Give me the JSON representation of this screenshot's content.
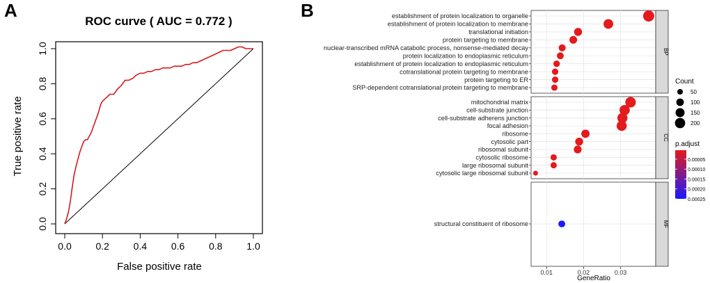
{
  "panels": {
    "a": "A",
    "b": "B"
  },
  "chart_data": [
    {
      "type": "line",
      "title": "ROC curve ( AUC =  0.772 )",
      "xlabel": "False positive rate",
      "ylabel": "True positive rate",
      "xlim": [
        0,
        1
      ],
      "ylim": [
        0,
        1
      ],
      "x_ticks": [
        "0.0",
        "0.2",
        "0.4",
        "0.6",
        "0.8",
        "1.0"
      ],
      "y_ticks": [
        "0.0",
        "0.2",
        "0.4",
        "0.6",
        "0.8",
        "1.0"
      ],
      "series": [
        {
          "name": "ROC",
          "color": "#d7191c",
          "x": [
            0.0,
            0.01,
            0.02,
            0.03,
            0.04,
            0.05,
            0.06,
            0.07,
            0.08,
            0.09,
            0.1,
            0.11,
            0.12,
            0.13,
            0.14,
            0.15,
            0.16,
            0.17,
            0.18,
            0.19,
            0.2,
            0.22,
            0.24,
            0.26,
            0.28,
            0.3,
            0.32,
            0.34,
            0.36,
            0.38,
            0.4,
            0.42,
            0.44,
            0.46,
            0.48,
            0.5,
            0.52,
            0.54,
            0.56,
            0.58,
            0.6,
            0.62,
            0.64,
            0.66,
            0.68,
            0.7,
            0.72,
            0.74,
            0.76,
            0.78,
            0.8,
            0.82,
            0.84,
            0.86,
            0.88,
            0.9,
            0.92,
            0.94,
            0.96,
            0.98,
            1.0
          ],
          "y": [
            0.0,
            0.03,
            0.07,
            0.13,
            0.21,
            0.28,
            0.33,
            0.37,
            0.41,
            0.44,
            0.47,
            0.48,
            0.48,
            0.5,
            0.52,
            0.55,
            0.58,
            0.61,
            0.64,
            0.68,
            0.7,
            0.72,
            0.74,
            0.74,
            0.77,
            0.79,
            0.82,
            0.82,
            0.83,
            0.85,
            0.86,
            0.86,
            0.87,
            0.87,
            0.88,
            0.88,
            0.89,
            0.89,
            0.89,
            0.9,
            0.9,
            0.9,
            0.91,
            0.91,
            0.92,
            0.92,
            0.93,
            0.94,
            0.95,
            0.96,
            0.97,
            0.98,
            0.99,
            0.99,
            0.99,
            1.0,
            1.01,
            1.01,
            1.0,
            1.0,
            1.0
          ]
        },
        {
          "name": "diagonal",
          "color": "#000000",
          "x": [
            0,
            1
          ],
          "y": [
            0,
            1
          ]
        }
      ]
    },
    {
      "type": "scatter",
      "subtype": "dot plot",
      "xlabel": "GeneRatio",
      "xlim": [
        0.0058,
        0.0395
      ],
      "x_ticks": [
        0.01,
        0.02,
        0.03
      ],
      "x_tick_labels": [
        "0.01",
        "0.02",
        "0.03"
      ],
      "facets": [
        {
          "label": "BP",
          "terms": [
            {
              "term": "establishment of protein localization to organelle",
              "gene_ratio": 0.0376,
              "count": 240,
              "p_adjust": 5e-06
            },
            {
              "term": "establishment of protein localization to membrane",
              "gene_ratio": 0.0267,
              "count": 175,
              "p_adjust": 5e-06
            },
            {
              "term": "translational initiation",
              "gene_ratio": 0.0185,
              "count": 115,
              "p_adjust": 5e-06
            },
            {
              "term": "protein targeting to membrane",
              "gene_ratio": 0.0172,
              "count": 105,
              "p_adjust": 5e-06
            },
            {
              "term": "nuclear-transcribed mRNA catabolic process, nonsense-mediated decay",
              "gene_ratio": 0.0142,
              "count": 85,
              "p_adjust": 5e-06
            },
            {
              "term": "protein localization to endoplasmic reticulum",
              "gene_ratio": 0.0137,
              "count": 80,
              "p_adjust": 5e-06
            },
            {
              "term": "establishment of protein localization to endoplasmic reticulum",
              "gene_ratio": 0.0127,
              "count": 70,
              "p_adjust": 5e-06
            },
            {
              "term": "cotranslational protein targeting to membrane",
              "gene_ratio": 0.0123,
              "count": 68,
              "p_adjust": 5e-06
            },
            {
              "term": "protein targeting to ER",
              "gene_ratio": 0.0123,
              "count": 68,
              "p_adjust": 5e-06
            },
            {
              "term": "SRP-dependent cotranslational protein targeting to membrane",
              "gene_ratio": 0.0121,
              "count": 66,
              "p_adjust": 5e-06
            }
          ]
        },
        {
          "label": "CC",
          "terms": [
            {
              "term": "mitochondrial matrix",
              "gene_ratio": 0.0327,
              "count": 210,
              "p_adjust": 5e-06
            },
            {
              "term": "cell-substrate junction",
              "gene_ratio": 0.0311,
              "count": 200,
              "p_adjust": 5e-06
            },
            {
              "term": "cell-substrate adherens junction",
              "gene_ratio": 0.0305,
              "count": 195,
              "p_adjust": 5e-06
            },
            {
              "term": "focal adhesion",
              "gene_ratio": 0.0303,
              "count": 193,
              "p_adjust": 5e-06
            },
            {
              "term": "ribosome",
              "gene_ratio": 0.0205,
              "count": 125,
              "p_adjust": 5e-06
            },
            {
              "term": "cytosolic part",
              "gene_ratio": 0.0188,
              "count": 112,
              "p_adjust": 5e-06
            },
            {
              "term": "ribosomal subunit",
              "gene_ratio": 0.0184,
              "count": 108,
              "p_adjust": 5e-06
            },
            {
              "term": "cytosolic ribosome",
              "gene_ratio": 0.0119,
              "count": 65,
              "p_adjust": 5e-06
            },
            {
              "term": "large ribosomal subunit",
              "gene_ratio": 0.0119,
              "count": 65,
              "p_adjust": 5e-06
            },
            {
              "term": "cytosolic large ribosomal subunit",
              "gene_ratio": 0.007,
              "count": 35,
              "p_adjust": 5e-06
            }
          ]
        },
        {
          "label": "MF",
          "terms": [
            {
              "term": "structural constituent of ribosome",
              "gene_ratio": 0.0141,
              "count": 80,
              "p_adjust": 0.00025
            }
          ]
        }
      ],
      "size_legend": {
        "title": "Count",
        "values": [
          50,
          100,
          150,
          200
        ],
        "labels": [
          "50",
          "100",
          "150",
          "200"
        ]
      },
      "color_legend": {
        "title": "p.adjust",
        "range": [
          5e-06,
          0.00025
        ],
        "ticks": [
          5e-05,
          0.0001,
          0.00015,
          0.0002,
          0.00025
        ],
        "tick_labels": [
          "0.00005",
          "0.00010",
          "0.00015",
          "0.00020",
          "0.00025"
        ],
        "low_color": "#e41a1c",
        "high_color": "#1a1aff"
      },
      "panel_bg": "#ffffff",
      "grid_color": "#e6e6e6",
      "strip_bg": "#d9d9d9"
    }
  ]
}
